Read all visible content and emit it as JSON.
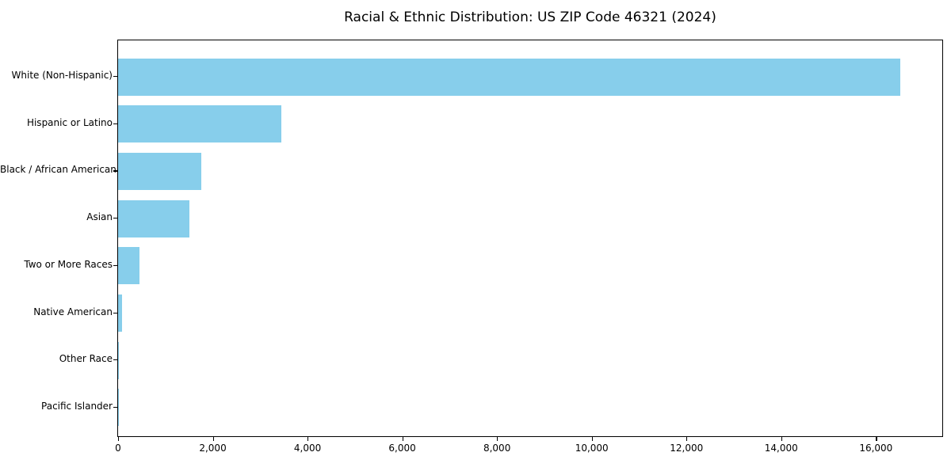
{
  "chart_data": {
    "type": "bar",
    "orientation": "horizontal",
    "title": "Racial & Ethnic Distribution: US ZIP Code 46321 (2024)",
    "categories": [
      "White (Non-Hispanic)",
      "Hispanic or Latino",
      "Black / African American",
      "Asian",
      "Two or More Races",
      "Native American",
      "Other Race",
      "Pacific Islander"
    ],
    "values": [
      16520,
      3445,
      1760,
      1510,
      450,
      85,
      15,
      5
    ],
    "bar_color": "#87CEEB",
    "frame_color": "#000000",
    "xlabel": "",
    "ylabel": "",
    "xlim": [
      0,
      17400
    ],
    "x_ticks": [
      0,
      2000,
      4000,
      6000,
      8000,
      10000,
      12000,
      14000,
      16000
    ],
    "x_tick_labels": [
      "0",
      "2,000",
      "4,000",
      "6,000",
      "8,000",
      "10,000",
      "12,000",
      "14,000",
      "16,000"
    ],
    "grid": false,
    "legend": null
  }
}
